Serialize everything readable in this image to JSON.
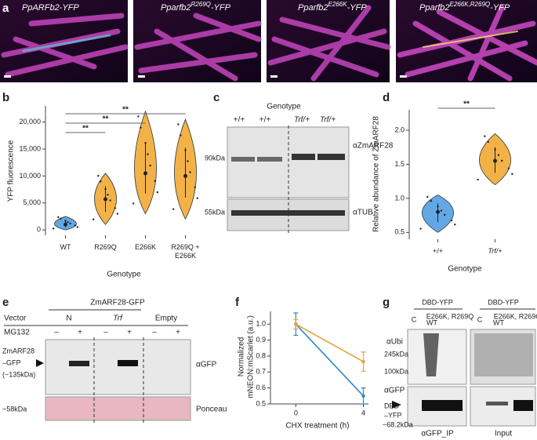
{
  "panel_letters": [
    "a",
    "b",
    "c",
    "d",
    "e",
    "f",
    "g"
  ],
  "panel_a": {
    "images": [
      {
        "gene": "PpARFb2",
        "tag": "-YFP"
      },
      {
        "gene": "Pparfb2",
        "mutation": "R269Q",
        "tag": "-YFP"
      },
      {
        "gene": "Pparfb2",
        "mutation": "E266K",
        "tag": "-YFP"
      },
      {
        "gene": "Pparfb2",
        "mutation": "E266K,R269Q",
        "tag": "-YFP"
      }
    ]
  },
  "panel_c": {
    "title": "Genotype",
    "lanes": [
      "+/+",
      "+/+",
      "Trf/+",
      "Trf/+"
    ],
    "antibodies": [
      "αZmARF28",
      "αTUB"
    ],
    "markers": [
      "90kDa",
      "55kDa"
    ]
  },
  "panel_e": {
    "construct": "ZmARF28-GFP",
    "vector_label": "Vector",
    "vectors": [
      "N",
      "Trf",
      "Empty"
    ],
    "treatment_label": "MG132",
    "treatment": [
      "–",
      "+",
      "–",
      "+",
      "–",
      "+"
    ],
    "band_label": [
      "ZmARF28",
      "–GFP",
      "(~135kDa)"
    ],
    "antibody": "αGFP",
    "marker": "~58kDa",
    "stain": "Ponceau"
  },
  "panel_g": {
    "groups": [
      "DBD-YFP",
      "DBD-YFP"
    ],
    "lanes_ip": [
      "C",
      "WT",
      "E266K, R269Q"
    ],
    "lanes_input": [
      "C",
      "WT",
      "E266K, R269Q"
    ],
    "antibodies": [
      "αUbi",
      "αGFP"
    ],
    "markers": [
      "245kDa",
      "100kDa",
      "~68.2kDa"
    ],
    "band_label": [
      "DBD",
      "–YFP"
    ],
    "sections": [
      "αGFP_IP",
      "Input"
    ]
  },
  "chart_data": [
    {
      "type": "violin",
      "xlabel": "Genotype",
      "ylabel": "YFP fluorescence",
      "categories": [
        "WT",
        "R269Q",
        "E266K",
        "R269Q + E266K"
      ],
      "colors": [
        "#62a8e5",
        "#f2b248",
        "#f2b248",
        "#f2b248"
      ],
      "means": [
        1000,
        5700,
        10500,
        10000
      ],
      "mins": [
        0,
        1000,
        3000,
        2000
      ],
      "maxs": [
        2500,
        10500,
        22000,
        20500
      ],
      "ylim": [
        -1000,
        23000
      ],
      "yticks": [
        0,
        {
          "value": 5000,
          "label": "5,000"
        },
        {
          "value": 10000,
          "label": "10,000"
        },
        {
          "value": 15000,
          "label": "15,000"
        },
        {
          "value": 20000,
          "label": "20,000"
        }
      ],
      "significance": [
        "**",
        "**",
        "**"
      ]
    },
    {
      "type": "violin",
      "xlabel": "Genotype",
      "ylabel": "Relative abundance of ZmARF28",
      "categories": [
        "+/+",
        "Trf/+"
      ],
      "colors": [
        "#62a8e5",
        "#f2b248"
      ],
      "means": [
        0.8,
        1.55
      ],
      "mins": [
        0.5,
        1.2
      ],
      "maxs": [
        1.05,
        1.95
      ],
      "ylim": [
        0.4,
        2.3
      ],
      "yticks": [
        0.5,
        {
          "value": 1,
          "label": "1.0"
        },
        1.5,
        {
          "value": 2,
          "label": "2.0"
        }
      ],
      "significance": [
        "**"
      ]
    },
    {
      "type": "line",
      "xlabel": "CHX treatment (h)",
      "ylabel": [
        "Normalized",
        "mNEON:mScarlet (a.u.)"
      ],
      "x": [
        0,
        4
      ],
      "xlim": [
        -1.5,
        4.3
      ],
      "xticks": [
        0,
        4
      ],
      "ylim": [
        0.5,
        1.08
      ],
      "yticks": [
        0.5,
        0.6,
        0.7,
        0.8,
        0.9,
        {
          "value": 1,
          "label": "1.0"
        }
      ],
      "series": [
        {
          "color": "#2f86c8",
          "values": [
            1.0,
            0.55
          ],
          "errors": [
            0.07,
            0.05
          ]
        },
        {
          "color": "#e8a33a",
          "values": [
            1.0,
            0.765
          ],
          "errors": [
            0.03,
            0.06
          ]
        }
      ]
    }
  ]
}
